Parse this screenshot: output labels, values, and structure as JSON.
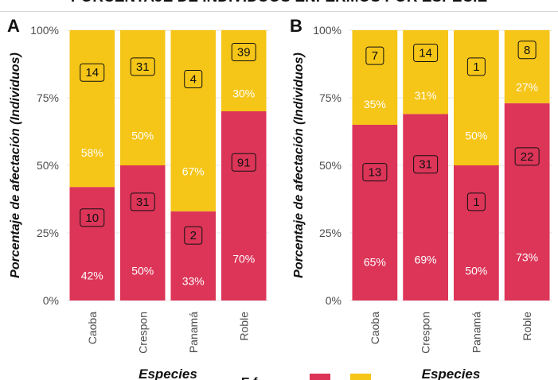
{
  "title": "PORCENTAJE DE INDIVIDUOS ENFERMOS POR ESPECIE",
  "colors": {
    "series_1": "#DC3558",
    "series_2": "#F5C518",
    "grid": "#E6E6E6"
  },
  "legend": {
    "title": "E f"
  },
  "chart_data": [
    {
      "type": "bar",
      "stacked": true,
      "panel_label": "A",
      "xlabel": "Especies",
      "ylabel": "Porcentaje de afectación (Individuos)",
      "ylim": [
        0,
        100
      ],
      "yticks": [
        "0%",
        "25%",
        "50%",
        "75%",
        "100%"
      ],
      "categories": [
        "Caoba",
        "Crespon",
        "Panamá",
        "Roble"
      ],
      "series": [
        {
          "color": "#DC3558",
          "values": [
            42,
            50,
            33,
            70
          ],
          "pct_labels": [
            "42%",
            "50%",
            "33%",
            "70%"
          ],
          "counts": [
            "10",
            "31",
            "2",
            "91"
          ]
        },
        {
          "color": "#F5C518",
          "values": [
            58,
            50,
            67,
            30
          ],
          "pct_labels": [
            "58%",
            "50%",
            "67%",
            "30%"
          ],
          "counts": [
            "14",
            "31",
            "4",
            "39"
          ]
        }
      ]
    },
    {
      "type": "bar",
      "stacked": true,
      "panel_label": "B",
      "xlabel": "Especies",
      "ylabel": "Porcentaje de afectación (Individuos)",
      "ylim": [
        0,
        100
      ],
      "yticks": [
        "0%",
        "25%",
        "50%",
        "75%",
        "100%"
      ],
      "categories": [
        "Caoba",
        "Crespon",
        "Panamá",
        "Roble"
      ],
      "series": [
        {
          "color": "#DC3558",
          "values": [
            65,
            69,
            50,
            73
          ],
          "pct_labels": [
            "65%",
            "69%",
            "50%",
            "73%"
          ],
          "counts": [
            "13",
            "31",
            "1",
            "22"
          ]
        },
        {
          "color": "#F5C518",
          "values": [
            35,
            31,
            50,
            27
          ],
          "pct_labels": [
            "35%",
            "31%",
            "50%",
            "27%"
          ],
          "counts": [
            "7",
            "14",
            "1",
            "8"
          ]
        }
      ]
    }
  ]
}
